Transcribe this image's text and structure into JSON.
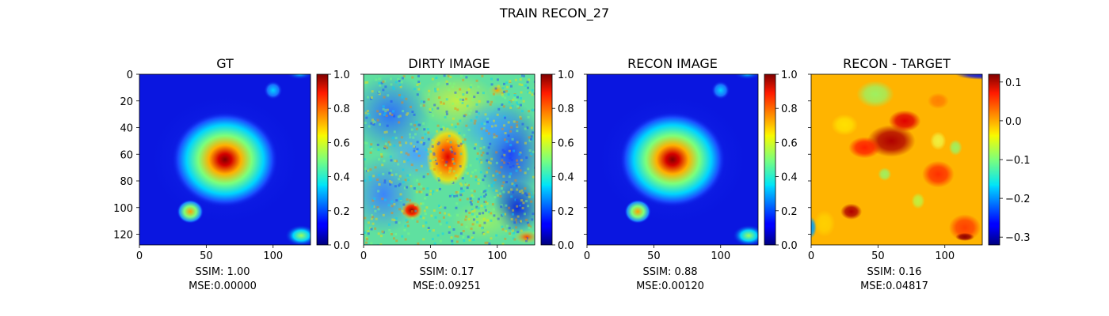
{
  "figure": {
    "title": "TRAIN RECON_27"
  },
  "chart_data": [
    {
      "type": "heatmap",
      "title": "GT",
      "colormap": "jet",
      "xlim": [
        0,
        128
      ],
      "ylim": [
        128,
        0
      ],
      "xticks": [
        0,
        50,
        100
      ],
      "yticks": [
        0,
        20,
        40,
        60,
        80,
        100,
        120
      ],
      "show_yticklabels": true,
      "colorbar": {
        "range": [
          0.0,
          1.0
        ],
        "ticks": [
          "0.0",
          "0.2",
          "0.4",
          "0.6",
          "0.8",
          "1.0"
        ]
      },
      "ssim_text": "SSIM: 1.00",
      "mse_text": "MSE:0.00000",
      "ssim": 1.0,
      "mse": 0.0
    },
    {
      "type": "heatmap",
      "title": "DIRTY IMAGE",
      "colormap": "jet",
      "xlim": [
        0,
        128
      ],
      "ylim": [
        128,
        0
      ],
      "xticks": [
        0,
        50,
        100
      ],
      "yticks": [
        0,
        20,
        40,
        60,
        80,
        100,
        120
      ],
      "show_yticklabels": false,
      "colorbar": {
        "range": [
          0.0,
          1.0
        ],
        "ticks": [
          "0.0",
          "0.2",
          "0.4",
          "0.6",
          "0.8",
          "1.0"
        ]
      },
      "ssim_text": "SSIM: 0.17",
      "mse_text": "MSE:0.09251",
      "ssim": 0.17,
      "mse": 0.09251
    },
    {
      "type": "heatmap",
      "title": "RECON IMAGE",
      "colormap": "jet",
      "xlim": [
        0,
        128
      ],
      "ylim": [
        128,
        0
      ],
      "xticks": [
        0,
        50,
        100
      ],
      "yticks": [
        0,
        20,
        40,
        60,
        80,
        100,
        120
      ],
      "show_yticklabels": false,
      "colorbar": {
        "range": [
          0.0,
          1.0
        ],
        "ticks": [
          "0.0",
          "0.2",
          "0.4",
          "0.6",
          "0.8",
          "1.0"
        ]
      },
      "ssim_text": "SSIM: 0.88",
      "mse_text": "MSE:0.00120",
      "ssim": 0.88,
      "mse": 0.0012
    },
    {
      "type": "heatmap",
      "title": "RECON - TARGET",
      "colormap": "jet",
      "xlim": [
        0,
        128
      ],
      "ylim": [
        128,
        0
      ],
      "xticks": [
        0,
        50,
        100
      ],
      "yticks": [
        0,
        20,
        40,
        60,
        80,
        100,
        120
      ],
      "show_yticklabels": false,
      "colorbar": {
        "range": [
          -0.32,
          0.12
        ],
        "ticks": [
          "0.1",
          "0.0",
          "−0.1",
          "−0.2",
          "−0.3"
        ],
        "tick_values": [
          0.1,
          0.0,
          -0.1,
          -0.2,
          -0.3
        ]
      },
      "ssim_text": "SSIM: 0.16",
      "mse_text": "MSE:0.04817",
      "ssim": 0.16,
      "mse": 0.04817
    }
  ]
}
